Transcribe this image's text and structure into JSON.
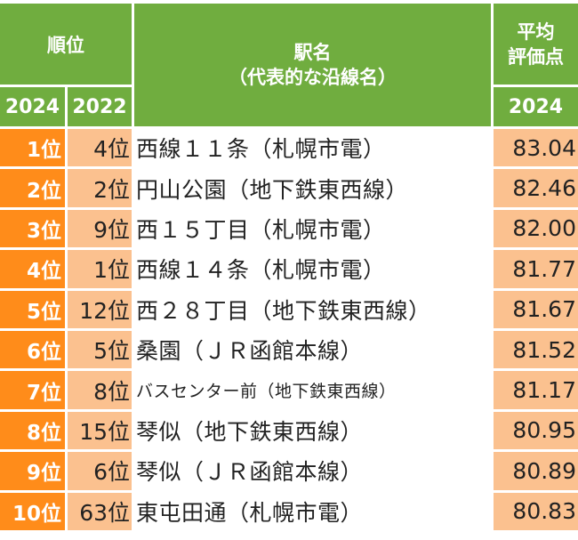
{
  "header": {
    "rank": "順位",
    "name_line1": "駅名",
    "name_line2": "（代表的な沿線名）",
    "score_line1": "平均",
    "score_line2": "評価点",
    "year_2024": "2024",
    "year_2022": "2022",
    "score_year": "2024"
  },
  "rows": [
    {
      "rank": "1位",
      "prev": "4位",
      "name": "西線１１条（札幌市電）",
      "score": "83.04"
    },
    {
      "rank": "2位",
      "prev": "2位",
      "name": "円山公園（地下鉄東西線）",
      "score": "82.46"
    },
    {
      "rank": "3位",
      "prev": "9位",
      "name": "西１５丁目（札幌市電）",
      "score": "82.00"
    },
    {
      "rank": "4位",
      "prev": "1位",
      "name": "西線１４条（札幌市電）",
      "score": "81.77"
    },
    {
      "rank": "5位",
      "prev": "12位",
      "name": "西２８丁目（地下鉄東西線）",
      "score": "81.67"
    },
    {
      "rank": "6位",
      "prev": "5位",
      "name": "桑園（ＪＲ函館本線）",
      "score": "81.52"
    },
    {
      "rank": "7位",
      "prev": "8位",
      "name": "バスセンター前（地下鉄東西線）",
      "score": "81.17"
    },
    {
      "rank": "8位",
      "prev": "15位",
      "name": "琴似（地下鉄東西線）",
      "score": "80.95"
    },
    {
      "rank": "9位",
      "prev": "6位",
      "name": "琴似（ＪＲ函館本線）",
      "score": "80.89"
    },
    {
      "rank": "10位",
      "prev": "63位",
      "name": "東屯田通（札幌市電）",
      "score": "80.83"
    }
  ]
}
